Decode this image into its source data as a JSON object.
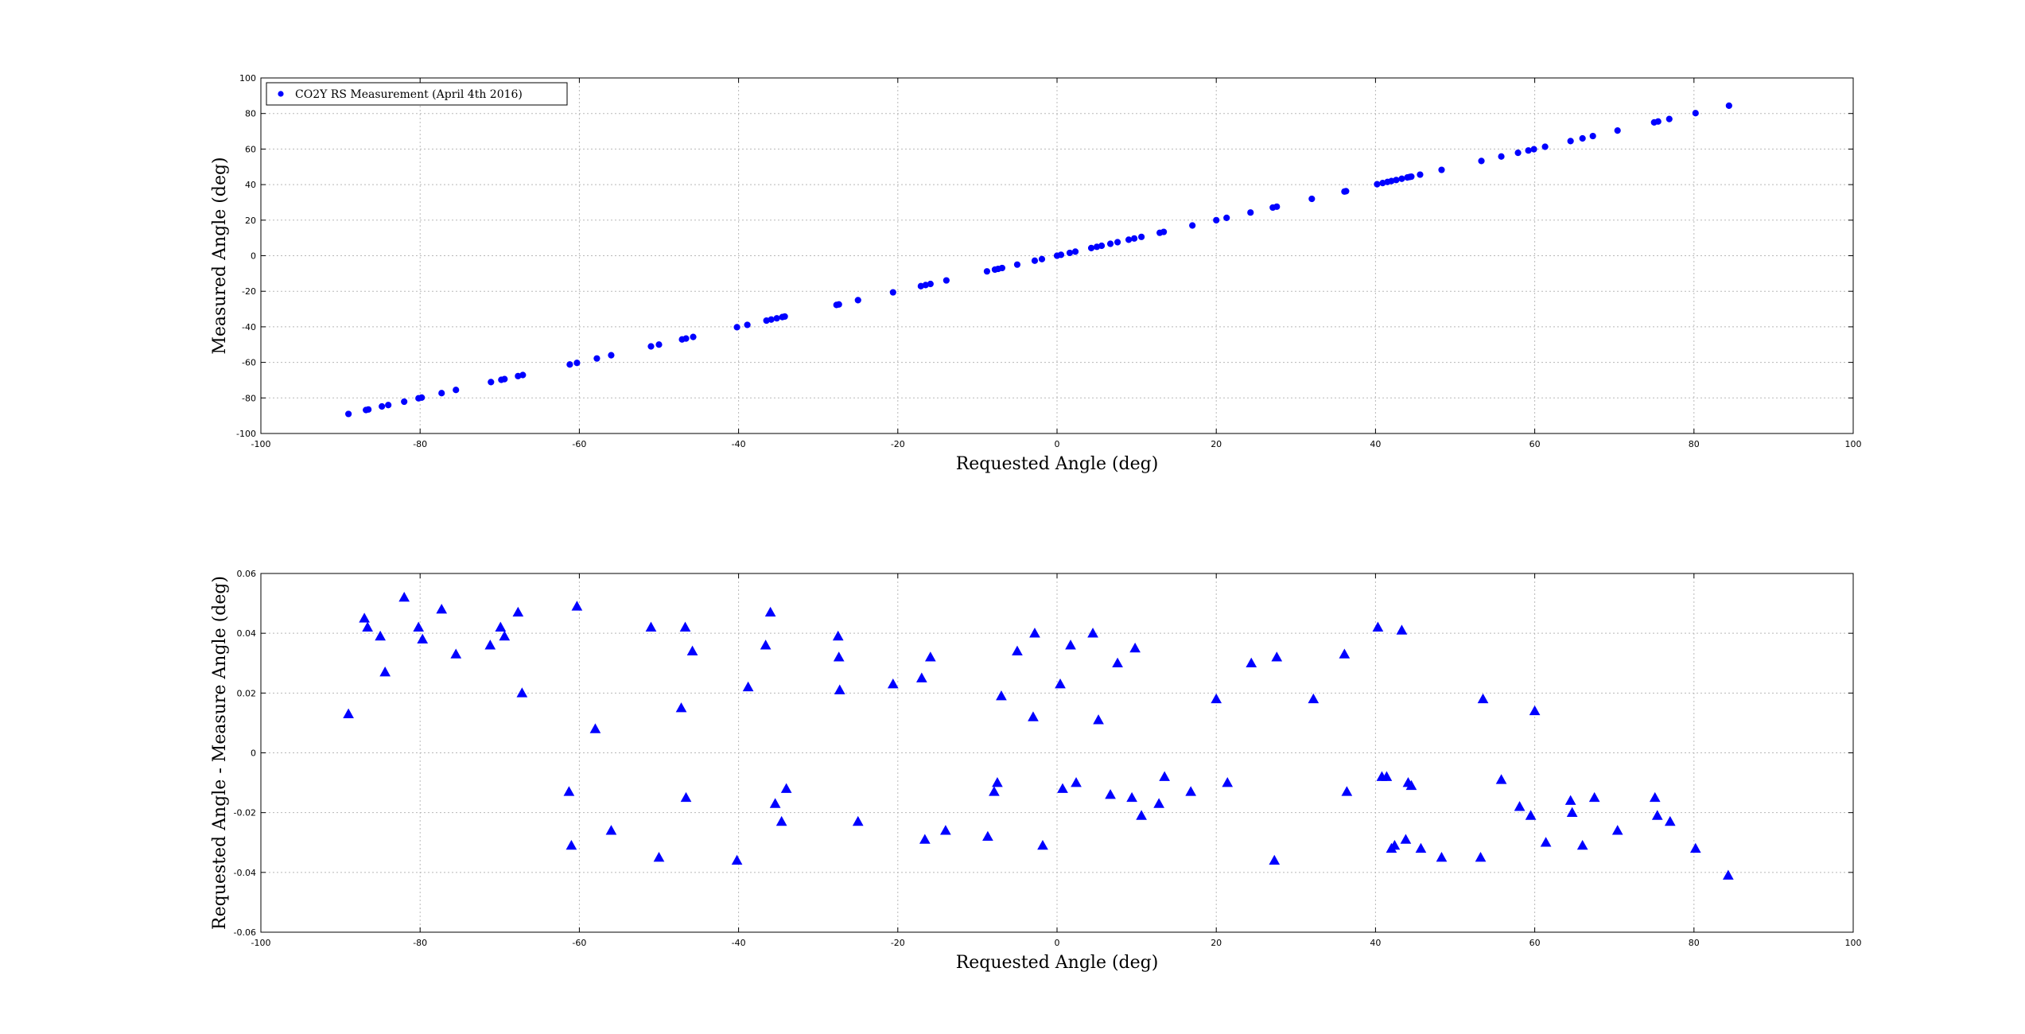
{
  "chart_data": [
    {
      "type": "scatter",
      "xlabel": "Requested Angle (deg)",
      "ylabel": "Measured Angle (deg)",
      "xlim": [
        -100,
        100
      ],
      "ylim": [
        -100,
        100
      ],
      "xticks": [
        -100,
        -80,
        -60,
        -40,
        -20,
        0,
        20,
        40,
        60,
        80,
        100
      ],
      "yticks": [
        -100,
        -80,
        -60,
        -40,
        -20,
        0,
        20,
        40,
        60,
        80,
        100
      ],
      "grid": true,
      "legend_position": "top-left",
      "marker": "circle",
      "color": "#0000ff",
      "series": [
        {
          "name": "CO2Y RS Measurement (April 4th 2016)",
          "x": [
            -89.0,
            -86.8,
            -86.5,
            -84.8,
            -84.0,
            -82.0,
            -80.2,
            -79.8,
            -77.3,
            -75.5,
            -71.1,
            -69.8,
            -69.4,
            -67.7,
            -67.1,
            -61.2,
            -60.3,
            -57.8,
            -56.0,
            -51.0,
            -50.0,
            -47.1,
            -46.6,
            -45.7,
            -40.2,
            -38.9,
            -36.5,
            -35.9,
            -35.2,
            -34.5,
            -34.2,
            -27.7,
            -27.4,
            -25.0,
            -20.6,
            -17.1,
            -16.5,
            -15.9,
            -13.9,
            -8.8,
            -7.8,
            -7.4,
            -6.9,
            -5.0,
            -2.8,
            -1.9,
            0.0,
            0.5,
            1.6,
            2.3,
            4.3,
            5.0,
            5.6,
            6.7,
            7.6,
            9.0,
            9.7,
            10.6,
            12.9,
            13.4,
            17.0,
            20.0,
            21.3,
            24.3,
            27.1,
            27.6,
            32.0,
            36.1,
            36.3,
            40.2,
            40.9,
            41.5,
            42.0,
            42.6,
            43.3,
            44.0,
            44.3,
            44.5,
            45.6,
            48.3,
            53.3,
            55.8,
            57.9,
            59.2,
            59.9,
            61.3,
            64.5,
            66.0,
            67.3,
            70.4,
            75.0,
            75.5,
            76.9,
            80.2,
            84.4
          ],
          "y": [
            -89.0,
            -86.8,
            -86.5,
            -84.8,
            -84.0,
            -82.1,
            -80.2,
            -79.8,
            -77.3,
            -75.5,
            -71.1,
            -69.8,
            -69.4,
            -67.7,
            -67.1,
            -61.2,
            -60.3,
            -57.8,
            -56.0,
            -51.0,
            -50.0,
            -47.1,
            -46.6,
            -45.7,
            -40.2,
            -38.9,
            -36.5,
            -35.9,
            -35.2,
            -34.5,
            -34.2,
            -27.7,
            -27.4,
            -25.0,
            -20.6,
            -17.1,
            -16.5,
            -15.9,
            -13.9,
            -8.8,
            -7.8,
            -7.4,
            -6.9,
            -5.0,
            -2.8,
            -1.9,
            0.0,
            0.5,
            1.6,
            2.3,
            4.3,
            5.0,
            5.6,
            6.7,
            7.6,
            9.0,
            9.7,
            10.6,
            12.9,
            13.4,
            17.0,
            20.0,
            21.3,
            24.3,
            27.1,
            27.6,
            32.0,
            36.1,
            36.3,
            40.2,
            40.9,
            41.5,
            42.0,
            42.6,
            43.3,
            44.0,
            44.3,
            44.5,
            45.6,
            48.3,
            53.3,
            55.8,
            57.9,
            59.2,
            59.9,
            61.3,
            64.5,
            66.0,
            67.3,
            70.4,
            75.0,
            75.5,
            76.9,
            80.2,
            84.4
          ]
        }
      ]
    },
    {
      "type": "scatter",
      "xlabel": "Requested Angle (deg)",
      "ylabel": "Requested Angle - Measure Angle (deg)",
      "xlim": [
        -100,
        100
      ],
      "ylim": [
        -0.06,
        0.06
      ],
      "xticks": [
        -100,
        -80,
        -60,
        -40,
        -20,
        0,
        20,
        40,
        60,
        80,
        100
      ],
      "yticks": [
        -0.06,
        -0.04,
        -0.02,
        0,
        0.02,
        0.04,
        0.06
      ],
      "ytick_labels": [
        "-0.06",
        "-0.04",
        "-0.02",
        "0",
        "0.02",
        "0.04",
        "0.06"
      ],
      "grid": true,
      "marker": "triangle",
      "color": "#0000ff",
      "series": [
        {
          "x": [
            -89.0,
            -87.0,
            -86.6,
            -85.0,
            -84.4,
            -82.0,
            -80.2,
            -79.7,
            -77.3,
            -75.5,
            -71.2,
            -69.9,
            -69.4,
            -67.7,
            -67.2,
            -61.3,
            -61.0,
            -60.3,
            -58.0,
            -56.0,
            -51.0,
            -50.0,
            -47.2,
            -46.7,
            -46.6,
            -45.8,
            -40.2,
            -38.8,
            -36.6,
            -36.0,
            -35.4,
            -34.6,
            -34.0,
            -27.5,
            -27.4,
            -27.3,
            -25.0,
            -20.6,
            -17.0,
            -16.6,
            -15.9,
            -14.0,
            -8.7,
            -7.9,
            -7.5,
            -7.0,
            -5.0,
            -3.0,
            -2.8,
            -1.8,
            0.4,
            0.7,
            1.7,
            2.4,
            4.5,
            5.2,
            6.7,
            7.6,
            9.4,
            9.8,
            10.6,
            12.8,
            13.5,
            16.8,
            20.0,
            21.4,
            24.4,
            27.3,
            27.6,
            32.2,
            36.1,
            36.4,
            40.3,
            40.8,
            41.4,
            42.0,
            42.4,
            43.3,
            43.8,
            44.1,
            44.5,
            45.7,
            48.3,
            53.2,
            53.5,
            55.8,
            58.1,
            59.5,
            60.0,
            61.4,
            64.5,
            64.7,
            66.0,
            67.5,
            70.4,
            75.1,
            75.4,
            77.0,
            80.2,
            84.3
          ],
          "y": [
            0.013,
            0.045,
            0.042,
            0.039,
            0.027,
            0.052,
            0.042,
            0.038,
            0.048,
            0.033,
            0.036,
            0.042,
            0.039,
            0.047,
            0.02,
            -0.013,
            -0.031,
            0.049,
            0.008,
            -0.026,
            0.042,
            -0.035,
            0.015,
            0.042,
            -0.015,
            0.034,
            -0.036,
            0.022,
            0.036,
            0.047,
            -0.017,
            -0.023,
            -0.012,
            0.039,
            0.032,
            0.021,
            -0.023,
            0.023,
            0.025,
            -0.029,
            0.032,
            -0.026,
            -0.028,
            -0.013,
            -0.01,
            0.019,
            0.034,
            0.012,
            0.04,
            -0.031,
            0.023,
            -0.012,
            0.036,
            -0.01,
            0.04,
            0.011,
            -0.014,
            0.03,
            -0.015,
            0.035,
            -0.021,
            -0.017,
            -0.008,
            -0.013,
            0.018,
            -0.01,
            0.03,
            -0.036,
            0.032,
            0.018,
            0.033,
            -0.013,
            0.042,
            -0.008,
            -0.008,
            -0.032,
            -0.031,
            0.041,
            -0.029,
            -0.01,
            -0.011,
            -0.032,
            -0.035,
            -0.035,
            0.018,
            -0.009,
            -0.018,
            -0.021,
            0.014,
            -0.03,
            -0.016,
            -0.02,
            -0.031,
            -0.015,
            -0.026,
            -0.015,
            -0.021,
            -0.023,
            -0.032,
            -0.041
          ]
        }
      ]
    }
  ]
}
